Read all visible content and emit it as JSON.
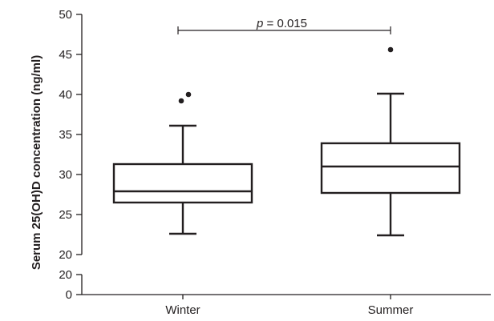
{
  "chart_data": {
    "type": "box",
    "ylabel": "Serum 25(OH)D concentration (ng/ml)",
    "xlabel": "",
    "categories": [
      "Winter",
      "Summer"
    ],
    "ylim": [
      20,
      50
    ],
    "yticks": [
      20,
      25,
      30,
      35,
      40,
      45,
      50
    ],
    "axis_break": true,
    "lower_segment_ticks": [
      0,
      20
    ],
    "boxes": [
      {
        "name": "Winter",
        "whisker_low": 22.6,
        "q1": 26.5,
        "median": 27.9,
        "q3": 31.3,
        "whisker_high": 36.1,
        "outliers": [
          39.2,
          40.0
        ]
      },
      {
        "name": "Summer",
        "whisker_low": 22.4,
        "q1": 27.7,
        "median": 31.0,
        "q3": 33.9,
        "whisker_high": 40.1,
        "outliers": [
          45.6
        ]
      }
    ],
    "annotation": {
      "p_symbol": "p",
      "text": " = 0.015",
      "between": [
        "Winter",
        "Summer"
      ]
    },
    "grid": false
  }
}
